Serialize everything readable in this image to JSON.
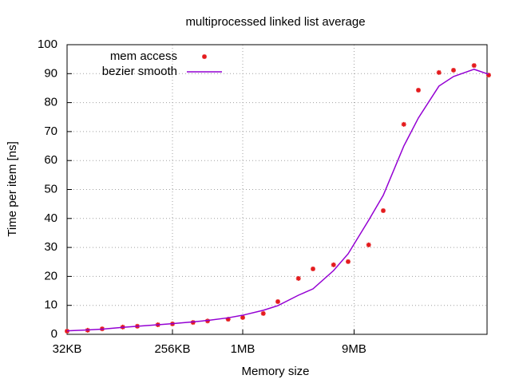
{
  "chart_data": {
    "type": "line",
    "title": "multiprocessed linked list average",
    "x_label": "Memory size",
    "y_label": "Time per item [ns]",
    "x": [
      32,
      48,
      64,
      96,
      128,
      192,
      256,
      384,
      512,
      768,
      1024,
      1536,
      2048,
      3072,
      4096,
      6144,
      8192,
      12288,
      16384,
      24576,
      32768,
      49152,
      65536,
      98304,
      131072
    ],
    "series": [
      {
        "name": "mem access",
        "color": "#e41a1c",
        "style": "points",
        "values": [
          1.1,
          1.4,
          1.9,
          2.5,
          2.8,
          3.3,
          3.6,
          4.1,
          4.6,
          5.2,
          5.8,
          7.2,
          11.3,
          19.3,
          22.6,
          24.0,
          25.1,
          30.9,
          42.7,
          72.5,
          84.3,
          90.4,
          91.2,
          92.8,
          89.5
        ]
      },
      {
        "name": "bezier smooth",
        "color": "#9400d3",
        "style": "line",
        "values": [
          1.2,
          1.5,
          1.8,
          2.4,
          2.8,
          3.3,
          3.7,
          4.3,
          4.8,
          5.7,
          6.6,
          8.3,
          9.9,
          13.5,
          15.7,
          22,
          27.8,
          39.4,
          48,
          65,
          74.7,
          85.7,
          89,
          91.5,
          89.8
        ]
      }
    ],
    "xlog": true,
    "xlim": [
      32,
      131072
    ],
    "xticks": [
      {
        "value": 32,
        "label": "32KB"
      },
      {
        "value": 256,
        "label": "256KB"
      },
      {
        "value": 1024,
        "label": "1MB"
      },
      {
        "value": 9216,
        "label": "9MB"
      }
    ],
    "ylim": [
      0,
      100
    ],
    "yticks": [
      0,
      10,
      20,
      30,
      40,
      50,
      60,
      70,
      80,
      90,
      100
    ],
    "grid": true,
    "legend": "top-left"
  }
}
